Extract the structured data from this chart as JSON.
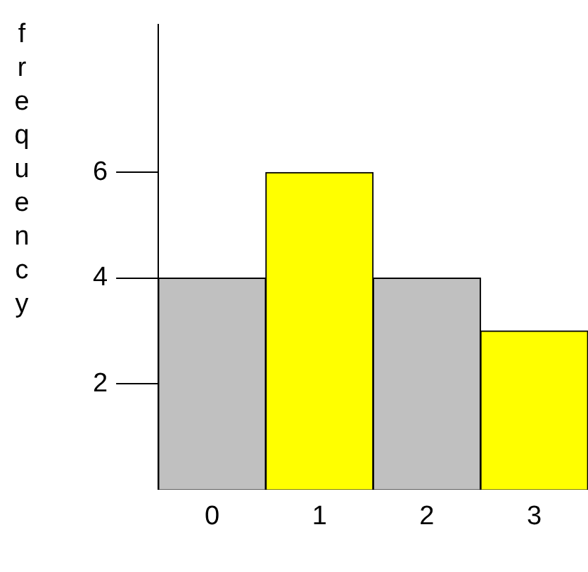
{
  "chart_data": {
    "type": "bar",
    "ylabel": "frequency",
    "categories": [
      "0",
      "1",
      "2",
      "3"
    ],
    "values": [
      4,
      6,
      4,
      3
    ],
    "colors": [
      "#c0c0c0",
      "#ffff00",
      "#c0c0c0",
      "#ffff00"
    ],
    "ylim": [
      0,
      8.8
    ],
    "yticks": [
      2,
      4,
      6
    ]
  }
}
